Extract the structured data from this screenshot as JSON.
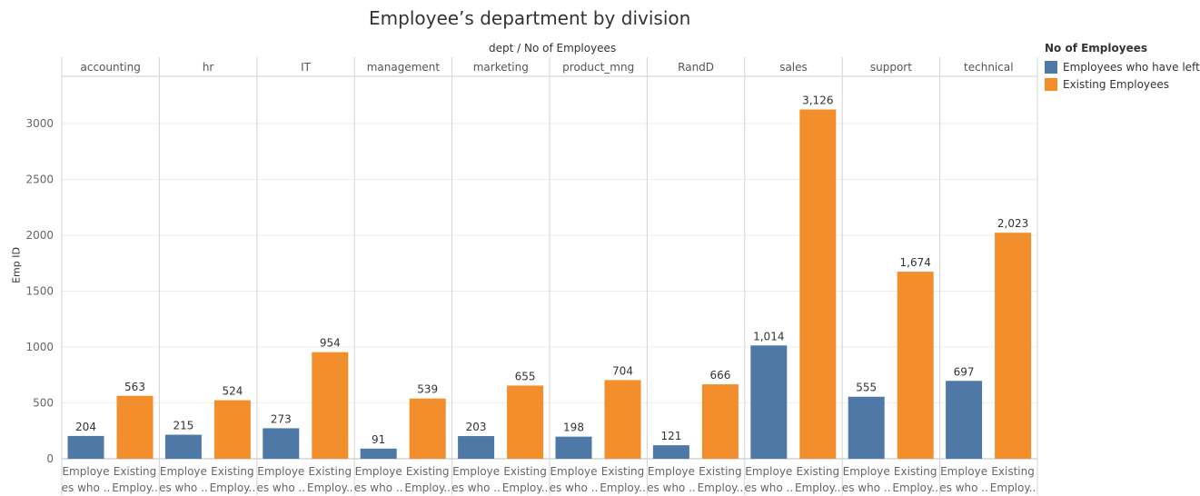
{
  "chart_data": {
    "type": "bar",
    "title": "Employee’s department by division",
    "column_header_title": "dept  /  No of Employees",
    "ylabel": "Emp ID",
    "ylim": [
      0,
      3500
    ],
    "y_ticks": [
      0,
      500,
      1000,
      1500,
      2000,
      2500,
      3000
    ],
    "grid": true,
    "legend_position": "right",
    "legend_title": "No of Employees",
    "departments": [
      "accounting",
      "hr",
      "IT",
      "management",
      "marketing",
      "product_mng",
      "RandD",
      "sales",
      "support",
      "technical"
    ],
    "bar_labels": [
      [
        "Employe",
        "es who .."
      ],
      [
        "Existing",
        "Employ.."
      ]
    ],
    "series": [
      {
        "name": "Employees who have left",
        "color": "#4e79a7",
        "values": [
          204,
          215,
          273,
          91,
          203,
          198,
          121,
          1014,
          555,
          697
        ],
        "value_labels": [
          "204",
          "215",
          "273",
          "91",
          "203",
          "198",
          "121",
          "1,014",
          "555",
          "697"
        ]
      },
      {
        "name": "Existing Employees",
        "color": "#f28e2b",
        "values": [
          563,
          524,
          954,
          539,
          655,
          704,
          666,
          3126,
          1674,
          2023
        ],
        "value_labels": [
          "563",
          "524",
          "954",
          "539",
          "655",
          "704",
          "666",
          "3,126",
          "1,674",
          "2,023"
        ]
      }
    ]
  }
}
